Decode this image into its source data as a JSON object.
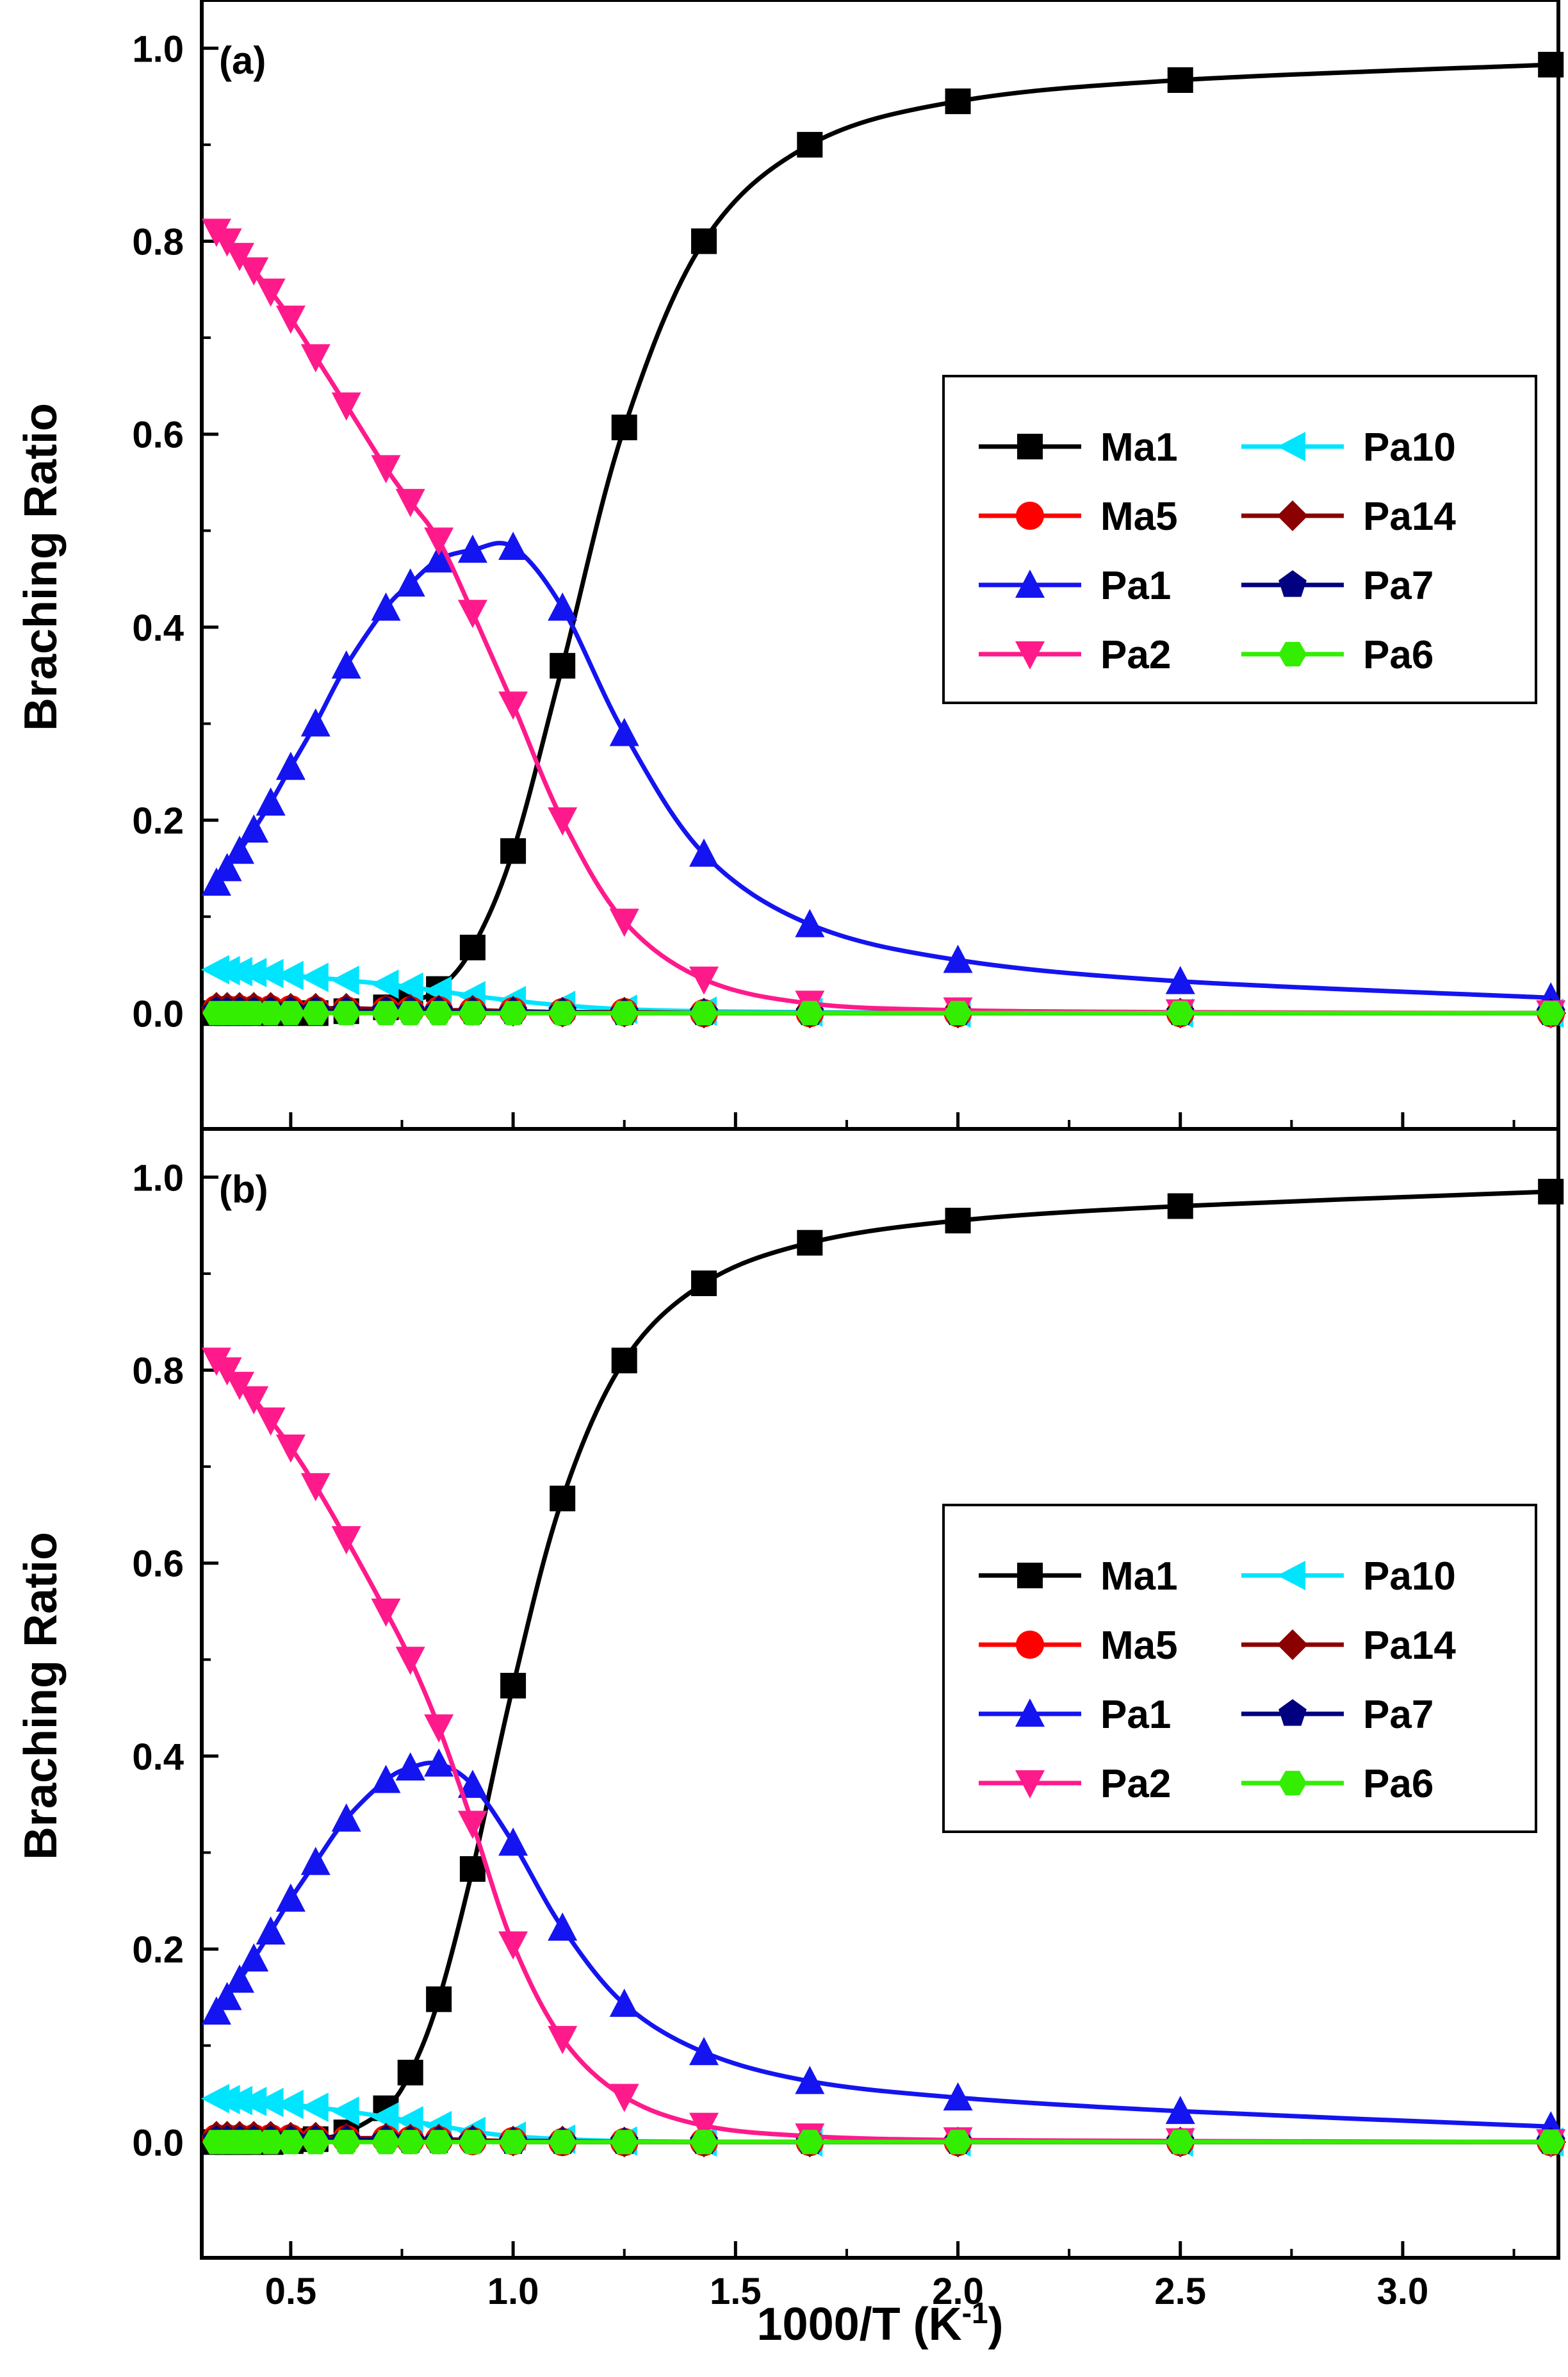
{
  "chart_data": [
    {
      "type": "line",
      "panel_label": "(a)",
      "xlabel": "1000/T (K⁻¹)",
      "ylabel": "Braching Ratio",
      "xlim": [
        0.3,
        3.35
      ],
      "ylim": [
        -0.12,
        1.05
      ],
      "xticks": [
        0.5,
        1.0,
        1.5,
        2.0,
        2.5,
        3.0
      ],
      "xtick_labels": [
        "0.5",
        "1.0",
        "1.5",
        "2.0",
        "2.5",
        "3.0"
      ],
      "yticks": [
        0.0,
        0.2,
        0.4,
        0.6,
        0.8,
        1.0
      ],
      "ytick_labels": [
        "0.0",
        "0.2",
        "0.4",
        "0.6",
        "0.8",
        "1.0"
      ],
      "x": [
        0.333,
        0.357,
        0.385,
        0.417,
        0.455,
        0.5,
        0.556,
        0.625,
        0.714,
        0.769,
        0.833,
        0.909,
        1.0,
        1.111,
        1.25,
        1.429,
        1.667,
        2.0,
        2.5,
        3.333
      ],
      "series": [
        {
          "name": "Ma1",
          "color": "#000000",
          "marker": "square",
          "values": [
            0.0,
            0.0,
            0.0,
            0.0,
            0.0,
            0.0,
            0.0,
            0.002,
            0.006,
            0.012,
            0.025,
            0.068,
            0.168,
            0.36,
            0.607,
            0.8,
            0.9,
            0.945,
            0.967,
            0.983
          ]
        },
        {
          "name": "Pa10",
          "color": "#00E5FF",
          "marker": "triangle-left",
          "values": [
            0.045,
            0.044,
            0.043,
            0.042,
            0.041,
            0.039,
            0.037,
            0.034,
            0.03,
            0.027,
            0.023,
            0.018,
            0.013,
            0.008,
            0.004,
            0.002,
            0.001,
            0.0,
            0.0,
            0.0
          ]
        },
        {
          "name": "Ma5",
          "color": "#FF0000",
          "marker": "circle",
          "values": [
            0.004,
            0.004,
            0.004,
            0.004,
            0.004,
            0.004,
            0.003,
            0.003,
            0.003,
            0.003,
            0.003,
            0.002,
            0.002,
            0.001,
            0.001,
            0.0,
            0.0,
            0.0,
            0.0,
            0.0
          ]
        },
        {
          "name": "Pa14",
          "color": "#8B0000",
          "marker": "diamond",
          "values": [
            0.006,
            0.006,
            0.006,
            0.006,
            0.006,
            0.005,
            0.005,
            0.005,
            0.004,
            0.004,
            0.003,
            0.003,
            0.002,
            0.001,
            0.001,
            0.0,
            0.0,
            0.0,
            0.0,
            0.0
          ]
        },
        {
          "name": "Pa1",
          "color": "#1414F0",
          "marker": "triangle-up",
          "values": [
            0.135,
            0.15,
            0.168,
            0.19,
            0.218,
            0.255,
            0.3,
            0.36,
            0.42,
            0.445,
            0.47,
            0.48,
            0.483,
            0.42,
            0.29,
            0.165,
            0.092,
            0.055,
            0.033,
            0.016
          ]
        },
        {
          "name": "Pa7",
          "color": "#000080",
          "marker": "pentagon",
          "values": [
            0.002,
            0.002,
            0.002,
            0.002,
            0.002,
            0.002,
            0.002,
            0.002,
            0.002,
            0.002,
            0.002,
            0.001,
            0.001,
            0.001,
            0.0,
            0.0,
            0.0,
            0.0,
            0.0,
            0.0
          ]
        },
        {
          "name": "Pa2",
          "color": "#FF1A8C",
          "marker": "triangle-down",
          "values": [
            0.81,
            0.8,
            0.785,
            0.77,
            0.748,
            0.72,
            0.68,
            0.63,
            0.565,
            0.53,
            0.49,
            0.415,
            0.32,
            0.2,
            0.095,
            0.035,
            0.01,
            0.003,
            0.001,
            0.0
          ]
        },
        {
          "name": "Pa6",
          "color": "#33EE00",
          "marker": "hexagon",
          "values": [
            0.0,
            0.0,
            0.0,
            0.0,
            0.0,
            0.0,
            0.0,
            0.0,
            0.0,
            0.0,
            0.0,
            0.0,
            0.0,
            0.0,
            0.0,
            0.0,
            0.0,
            0.0,
            0.0,
            0.0
          ]
        }
      ]
    },
    {
      "type": "line",
      "panel_label": "(b)",
      "xlabel": "1000/T (K⁻¹)",
      "ylabel": "Braching Ratio",
      "xlim": [
        0.3,
        3.35
      ],
      "ylim": [
        -0.12,
        1.05
      ],
      "xticks": [
        0.5,
        1.0,
        1.5,
        2.0,
        2.5,
        3.0
      ],
      "xtick_labels": [
        "0.5",
        "1.0",
        "1.5",
        "2.0",
        "2.5",
        "3.0"
      ],
      "yticks": [
        0.0,
        0.2,
        0.4,
        0.6,
        0.8,
        1.0
      ],
      "ytick_labels": [
        "0.0",
        "0.2",
        "0.4",
        "0.6",
        "0.8",
        "1.0"
      ],
      "x": [
        0.333,
        0.357,
        0.385,
        0.417,
        0.455,
        0.5,
        0.556,
        0.625,
        0.714,
        0.769,
        0.833,
        0.909,
        1.0,
        1.111,
        1.25,
        1.429,
        1.667,
        2.0,
        2.5,
        3.333
      ],
      "series": [
        {
          "name": "Ma1",
          "color": "#000000",
          "marker": "square",
          "values": [
            0.0,
            0.0,
            0.0,
            0.0,
            0.0,
            0.001,
            0.003,
            0.01,
            0.035,
            0.072,
            0.148,
            0.283,
            0.473,
            0.667,
            0.81,
            0.89,
            0.932,
            0.955,
            0.97,
            0.985
          ]
        },
        {
          "name": "Pa10",
          "color": "#00E5FF",
          "marker": "triangle-left",
          "values": [
            0.045,
            0.044,
            0.043,
            0.042,
            0.041,
            0.039,
            0.036,
            0.032,
            0.026,
            0.022,
            0.017,
            0.011,
            0.006,
            0.003,
            0.001,
            0.0,
            0.0,
            0.0,
            0.0,
            0.0
          ]
        },
        {
          "name": "Ma5",
          "color": "#FF0000",
          "marker": "circle",
          "values": [
            0.004,
            0.004,
            0.004,
            0.004,
            0.004,
            0.004,
            0.003,
            0.003,
            0.003,
            0.002,
            0.002,
            0.001,
            0.001,
            0.0,
            0.0,
            0.0,
            0.0,
            0.0,
            0.0,
            0.0
          ]
        },
        {
          "name": "Pa14",
          "color": "#8B0000",
          "marker": "diamond",
          "values": [
            0.006,
            0.006,
            0.006,
            0.006,
            0.006,
            0.005,
            0.005,
            0.004,
            0.004,
            0.003,
            0.003,
            0.002,
            0.001,
            0.001,
            0.0,
            0.0,
            0.0,
            0.0,
            0.0,
            0.0
          ]
        },
        {
          "name": "Pa1",
          "color": "#1414F0",
          "marker": "triangle-up",
          "values": [
            0.135,
            0.15,
            0.168,
            0.19,
            0.218,
            0.252,
            0.29,
            0.335,
            0.375,
            0.388,
            0.392,
            0.37,
            0.31,
            0.222,
            0.143,
            0.093,
            0.063,
            0.046,
            0.032,
            0.016
          ]
        },
        {
          "name": "Pa7",
          "color": "#000080",
          "marker": "pentagon",
          "values": [
            0.002,
            0.002,
            0.002,
            0.002,
            0.002,
            0.002,
            0.002,
            0.002,
            0.002,
            0.001,
            0.001,
            0.001,
            0.0,
            0.0,
            0.0,
            0.0,
            0.0,
            0.0,
            0.0,
            0.0
          ]
        },
        {
          "name": "Pa2",
          "color": "#FF1A8C",
          "marker": "triangle-down",
          "values": [
            0.81,
            0.8,
            0.785,
            0.77,
            0.748,
            0.72,
            0.68,
            0.625,
            0.55,
            0.5,
            0.43,
            0.33,
            0.205,
            0.107,
            0.047,
            0.017,
            0.006,
            0.002,
            0.001,
            0.0
          ]
        },
        {
          "name": "Pa6",
          "color": "#33EE00",
          "marker": "hexagon",
          "values": [
            0.0,
            0.0,
            0.0,
            0.0,
            0.0,
            0.0,
            0.0,
            0.0,
            0.0,
            0.0,
            0.0,
            0.0,
            0.0,
            0.0,
            0.0,
            0.0,
            0.0,
            0.0,
            0.0,
            0.0
          ]
        }
      ]
    }
  ]
}
